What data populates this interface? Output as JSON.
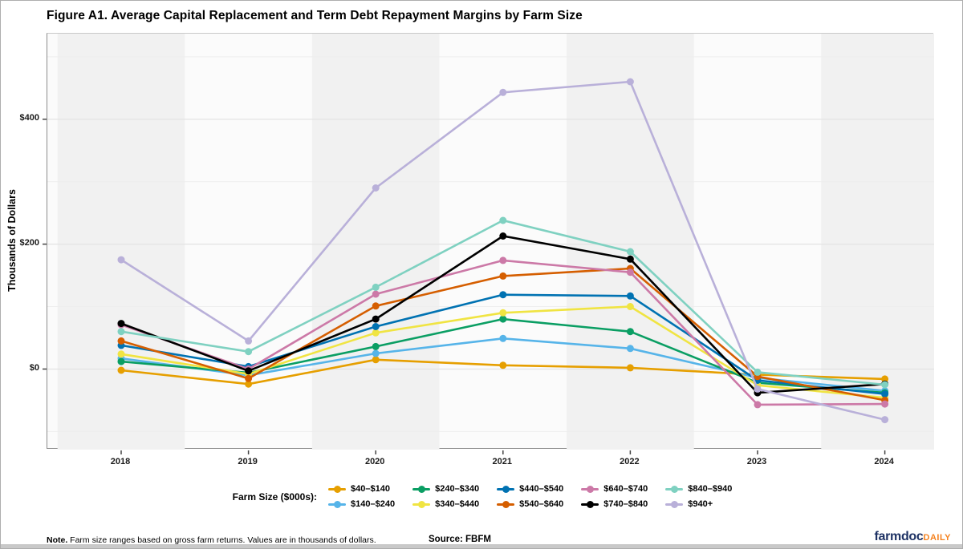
{
  "title": "Figure A1. Average Capital Replacement and Term Debt Repayment Margins by Farm Size",
  "y_axis": {
    "title": "Thousands of Dollars"
  },
  "x_axis": {
    "ticks": [
      "2018",
      "2019",
      "2020",
      "2021",
      "2022",
      "2023",
      "2024"
    ]
  },
  "legend": {
    "title": "Farm Size ($000s):",
    "rows": [
      [
        0,
        2,
        4,
        6,
        8
      ],
      [
        1,
        3,
        5,
        7,
        9
      ]
    ]
  },
  "footer": {
    "note_label": "Note.",
    "note_text": " Farm size ranges based on gross farm returns. Values are in thousands of dollars.",
    "source": "Source: FBFM",
    "brand_name": "farmdoc",
    "brand_suffix": "DAILY"
  },
  "colors": {
    "brand_navy": "#1E3264",
    "brand_orange": "#F5821F",
    "panel_bg": "#fbfbfb",
    "stripe": "#f1f1f1",
    "grid_major": "#e3e3e3",
    "grid_minor": "#eeeeee"
  },
  "chart_data": {
    "type": "line",
    "title": "Figure A1. Average Capital Replacement and Term Debt Repayment Margins by Farm Size",
    "xlabel": "",
    "ylabel": "Thousands of Dollars",
    "x": [
      2018,
      2019,
      2020,
      2021,
      2022,
      2023,
      2024
    ],
    "ylim": [
      -129,
      537
    ],
    "yticks": [
      {
        "value": 0,
        "label": "$0"
      },
      {
        "value": 200,
        "label": "$200"
      },
      {
        "value": 400,
        "label": "$400"
      }
    ],
    "yticks_minor": [
      -100,
      100,
      300,
      500
    ],
    "grid": true,
    "background_stripes": "alternating-by-year",
    "legend_position": "bottom",
    "series": [
      {
        "name": "$40–$140",
        "color": "#E69F00",
        "values": [
          -2,
          -24,
          15,
          6,
          2,
          -9,
          -16
        ]
      },
      {
        "name": "$140–$240",
        "color": "#56B4E9",
        "values": [
          17,
          -10,
          25,
          49,
          33,
          -14,
          -35
        ]
      },
      {
        "name": "$240–$340",
        "color": "#0A9E63",
        "values": [
          12,
          -6,
          36,
          80,
          60,
          -22,
          -38
        ]
      },
      {
        "name": "$340–$440",
        "color": "#F0E442",
        "values": [
          24,
          -8,
          58,
          90,
          100,
          -26,
          -46
        ]
      },
      {
        "name": "$440–$540",
        "color": "#0072B2",
        "values": [
          38,
          4,
          68,
          119,
          117,
          -18,
          -40
        ]
      },
      {
        "name": "$540–$640",
        "color": "#D55E00",
        "values": [
          45,
          -15,
          101,
          149,
          161,
          -12,
          -50
        ]
      },
      {
        "name": "$640–$740",
        "color": "#CC79A7",
        "values": [
          71,
          0,
          120,
          174,
          155,
          -57,
          -56
        ]
      },
      {
        "name": "$740–$840",
        "color": "#000000",
        "values": [
          73,
          -3,
          80,
          213,
          176,
          -38,
          -24
        ]
      },
      {
        "name": "$840–$940",
        "color": "#7FD1C1",
        "values": [
          60,
          28,
          131,
          238,
          188,
          -5,
          -25
        ]
      },
      {
        "name": "$940+",
        "color": "#B9B0D9",
        "values": [
          175,
          45,
          290,
          443,
          460,
          -32,
          -81
        ]
      }
    ]
  }
}
